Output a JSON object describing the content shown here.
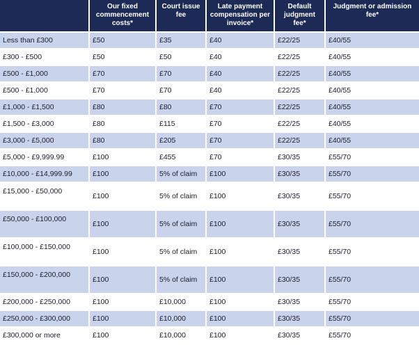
{
  "table": {
    "headers": [
      "",
      "Our fixed commencement costs*",
      "Court issue fee",
      "Late payment compensation per invoice*",
      "Default judgment fee*",
      "Judgment or admission fee*"
    ],
    "rows": [
      [
        "Less than £300",
        "£50",
        "£35",
        "£40",
        "£22/25",
        "£40/55"
      ],
      [
        "£300 - £500",
        "£50",
        "£50",
        "£40",
        "£22/25",
        "£40/55"
      ],
      [
        "£500 - £1,000",
        "£70",
        "£70",
        "£40",
        "£22/25",
        "£40/55"
      ],
      [
        "£500 - £1,000",
        "£70",
        "£70",
        "£40",
        "£22/25",
        "£40/55"
      ],
      [
        "£1,000 - £1,500",
        "£80",
        "£80",
        "£70",
        "£22/25",
        "£40/55"
      ],
      [
        "£1,500 - £3,000",
        "£80",
        "£115",
        "£70",
        "£22/25",
        "£40/55"
      ],
      [
        "£3,000 - £5,000",
        "£80",
        "£205",
        "£70",
        "£22/25",
        "£40/55"
      ],
      [
        "£5,000 - £9,999.99",
        "£100",
        "£455",
        "£70",
        "£30/35",
        "£55/70"
      ],
      [
        "£10,000 - £14,999.99",
        "£100",
        "5% of claim",
        "£100",
        "£30/35",
        "£55/70"
      ],
      [
        "£15,000 - £50,000",
        "£100",
        "5% of claim",
        "£100",
        "£30/35",
        "£55/70"
      ],
      [
        "£50,000 - £100,000",
        "£100",
        "5% of claim",
        "£100",
        "£30/35",
        "£55/70"
      ],
      [
        "£100,000 - £150,000",
        "£100",
        "5% of claim",
        "£100",
        "£30/35",
        "£55/70"
      ],
      [
        "£150,000 - £200,000",
        "£100",
        "5% of claim",
        "£100",
        "£30/35",
        "£55/70"
      ],
      [
        "£200,000 - £250,000",
        "£100",
        "£10,000",
        "£100",
        "£30/35",
        "£55/70"
      ],
      [
        "£250,000 - £300,000",
        "£100",
        "£10,000",
        "£100",
        "£30/35",
        "£55/70"
      ],
      [
        "£300,000 or more",
        "£100",
        "£10,000",
        "£100",
        "£30/35",
        "£55/70"
      ]
    ]
  },
  "colors": {
    "header_bg": "#1c2a55",
    "row_band": "#c9d4ec",
    "row_plain": "#ffffff"
  }
}
